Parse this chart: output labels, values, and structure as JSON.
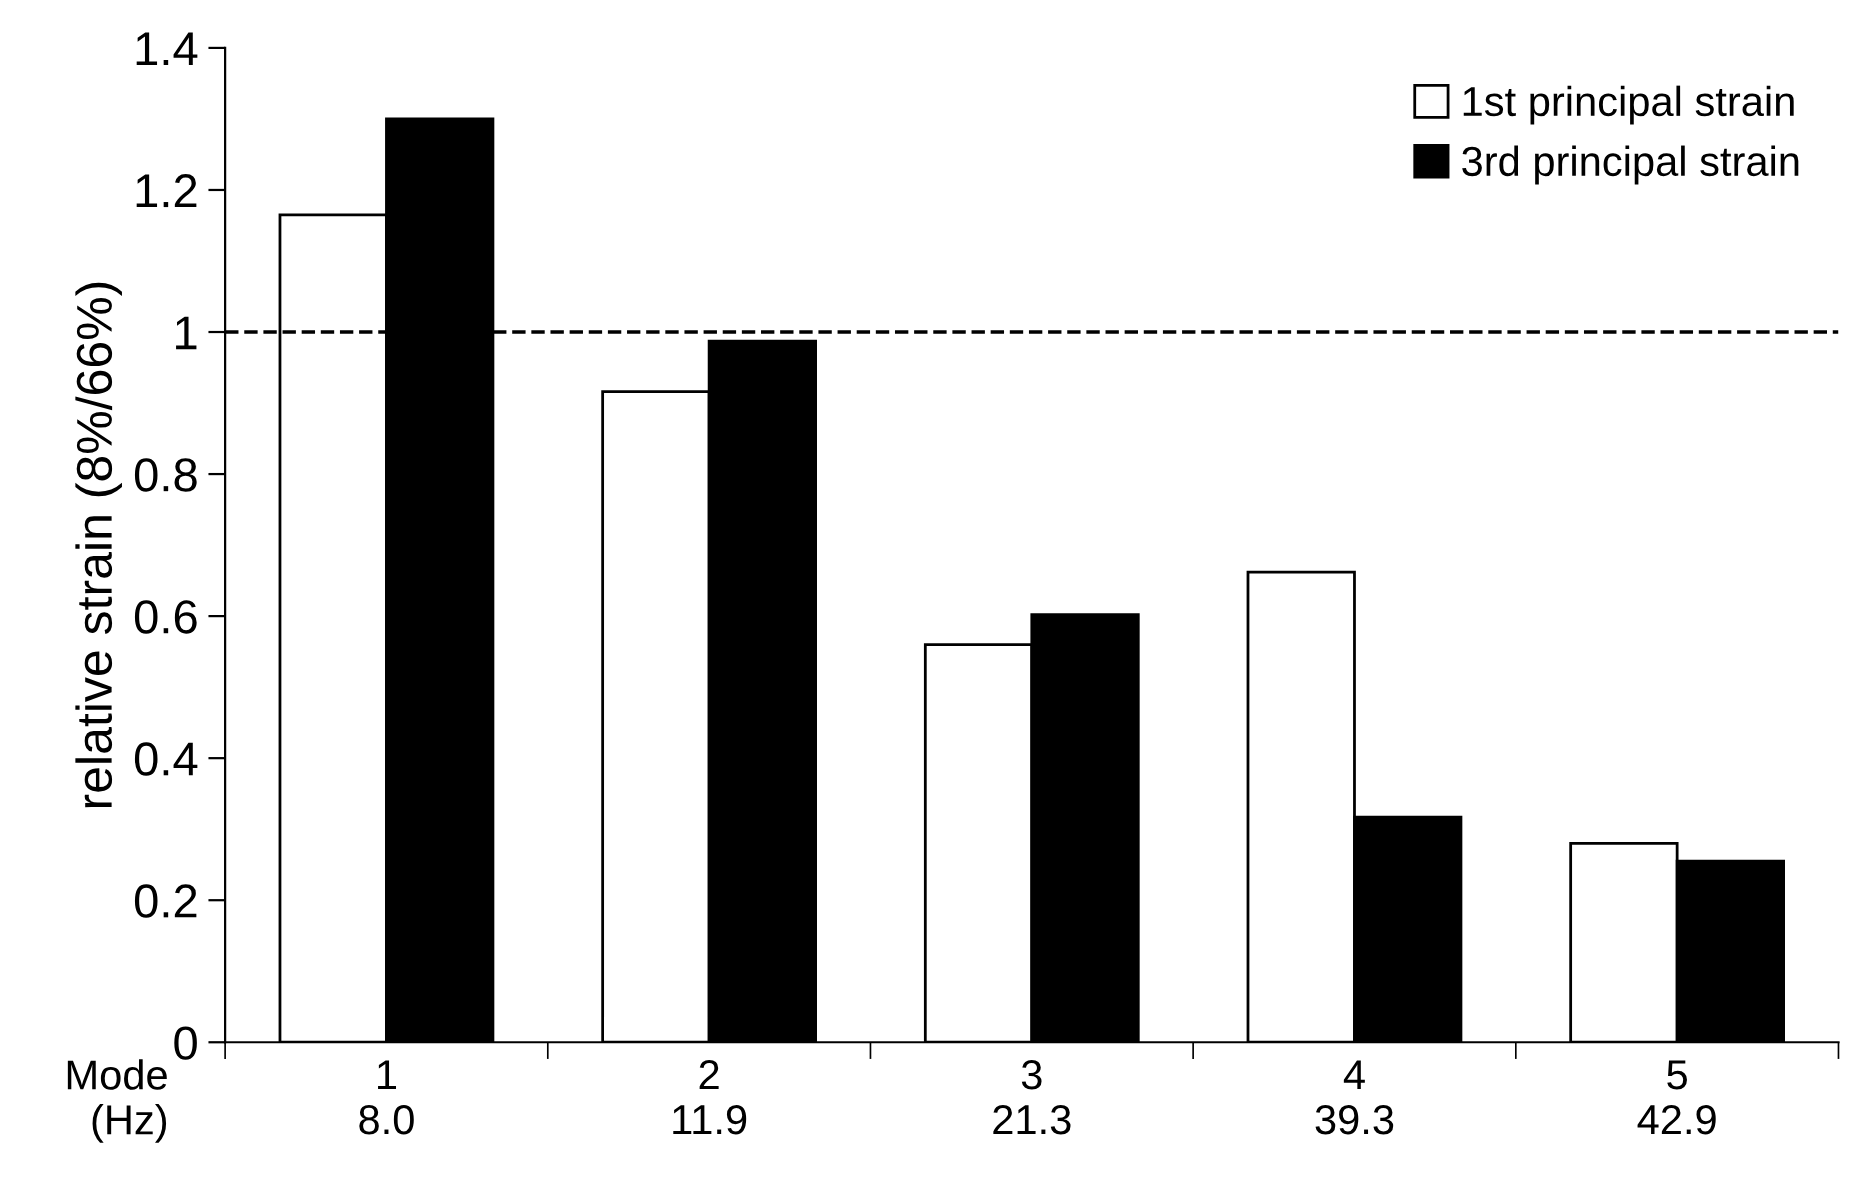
{
  "chart_data": {
    "type": "bar",
    "ylabel": "relative strain (8%/66%)",
    "xlabel": "Mode\n(Hz)",
    "categories": [
      "1\n8.0",
      "2\n11.9",
      "3\n21.3",
      "4\n39.3",
      "5\n42.9"
    ],
    "series": [
      {
        "name": "1st principal strain",
        "color": "#ffffff",
        "values": [
          1.165,
          0.916,
          0.56,
          0.662,
          0.28
        ]
      },
      {
        "name": "3rd principal strain",
        "color": "#000000",
        "values": [
          1.3,
          0.987,
          0.602,
          0.317,
          0.255
        ]
      }
    ],
    "ylim": [
      0,
      1.4
    ],
    "yticks": [
      0,
      0.2,
      0.4,
      0.6,
      0.8,
      1,
      1.2,
      1.4
    ],
    "ref_lines": [
      {
        "axis": "y",
        "value": 1,
        "line_style": "dashed",
        "color": "#000000"
      }
    ],
    "grid": false,
    "legend": "top right"
  }
}
